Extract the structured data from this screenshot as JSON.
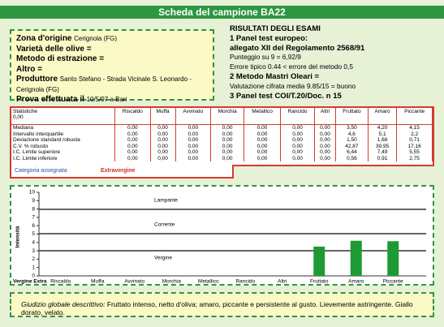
{
  "header": {
    "title": "Scheda del campione BA22"
  },
  "info": [
    {
      "label": "Zona d'origine",
      "value": "Cerignola (FG)"
    },
    {
      "label": "Varietà delle olive ="
    },
    {
      "label": "Metodo di estrazione ="
    },
    {
      "label": "Altro ="
    },
    {
      "label": "Produttore",
      "value": "Santo Stefano - Strada Vicinale S. Leonardo - Cerignola (FG)"
    },
    {
      "label": "Prova effettuata il",
      "value": "10/5/97 a Bari"
    }
  ],
  "results": [
    {
      "text": "RISULTATI DEGLI ESAMI",
      "bold": true
    },
    {
      "text": "1 Panel test europeo:",
      "bold": true
    },
    {
      "text": "allegato XII del Regolamento 2568/91",
      "bold": true
    },
    {
      "text": "Punteggio su 9 = 6,92/9",
      "bold": false
    },
    {
      "text": "Errore tipico 0.44 < errore del metodo 0,5",
      "bold": false
    },
    {
      "text": "2 Metodo Mastri Oleari =",
      "bold": true
    },
    {
      "text": "Valutazione cifrata media 9.85/15 = buono",
      "bold": false
    },
    {
      "text": "3 Panel test COI/T.20/Doc. n 15",
      "bold": true
    }
  ],
  "table": {
    "header": [
      "Statistiche\n0,00",
      "Riscaldo",
      "Muffa",
      "Avvinato",
      "Morchia",
      "Metallico",
      "Rancido",
      "Altri",
      "Fruttato",
      "Amaro",
      "Piccante"
    ],
    "rows": [
      [
        "Mediana",
        "0,00",
        "0,00",
        "0,00",
        "0,00",
        "0,00",
        "0,00",
        "0,00",
        "3,50",
        "4,20",
        "4,15"
      ],
      [
        "Intervallo interquartile",
        "0,00",
        "0,00",
        "0,00",
        "0,00",
        "0,00",
        "0,00",
        "0,00",
        "4,6",
        "5,1",
        "2,2"
      ],
      [
        "Deviazione standard robusta",
        "0,00",
        "0,00",
        "0,00",
        "0,00",
        "0,00",
        "0,00",
        "0,00",
        "1,50",
        "1,68",
        "0,71"
      ],
      [
        "C.V. % robusto",
        "0,00",
        "0,00",
        "0,00",
        "0,00",
        "0,00",
        "0,00",
        "0,00",
        "42,87",
        "39,95",
        "17,16"
      ],
      [
        "I.C. Limite superiore",
        "0,00",
        "0,00",
        "0,00",
        "0,00",
        "0,00",
        "0,00",
        "0,00",
        "6,44",
        "7,49",
        "5,55"
      ],
      [
        "I.C. Limite inferiore",
        "0,00",
        "0,00",
        "0,00",
        "0,00",
        "0,00",
        "0,00",
        "0,00",
        "0,56",
        "0,91",
        "2,75"
      ]
    ]
  },
  "category": {
    "label": "Categoria assegnata",
    "value": "Extravergine"
  },
  "chart_data": {
    "type": "bar",
    "y_label": "Intensità",
    "categories": [
      "Riscaldo",
      "Muffa",
      "Avvinato",
      "Morchia",
      "Metallico",
      "Rancido",
      "Altri",
      "Fruttato",
      "Amaro",
      "Piccante"
    ],
    "values": [
      0,
      0,
      0,
      0,
      0,
      0,
      0,
      3.5,
      4.2,
      4.15
    ],
    "color": "#1e9a35",
    "ylim": [
      0,
      10
    ],
    "yticks": [
      0,
      1,
      2,
      3,
      4,
      5,
      6,
      7,
      8,
      9,
      10
    ],
    "annotations": [
      "Lampante",
      "Corrente",
      "Vergine",
      "Vergine Extra"
    ]
  },
  "footer": {
    "label": "Giudizio globale descrittivo:",
    "text": "Fruttato intenso, netto d'oliva; amaro, piccante e persistente al gusto. Lievemente astringente. Giallo dorato, velato."
  }
}
